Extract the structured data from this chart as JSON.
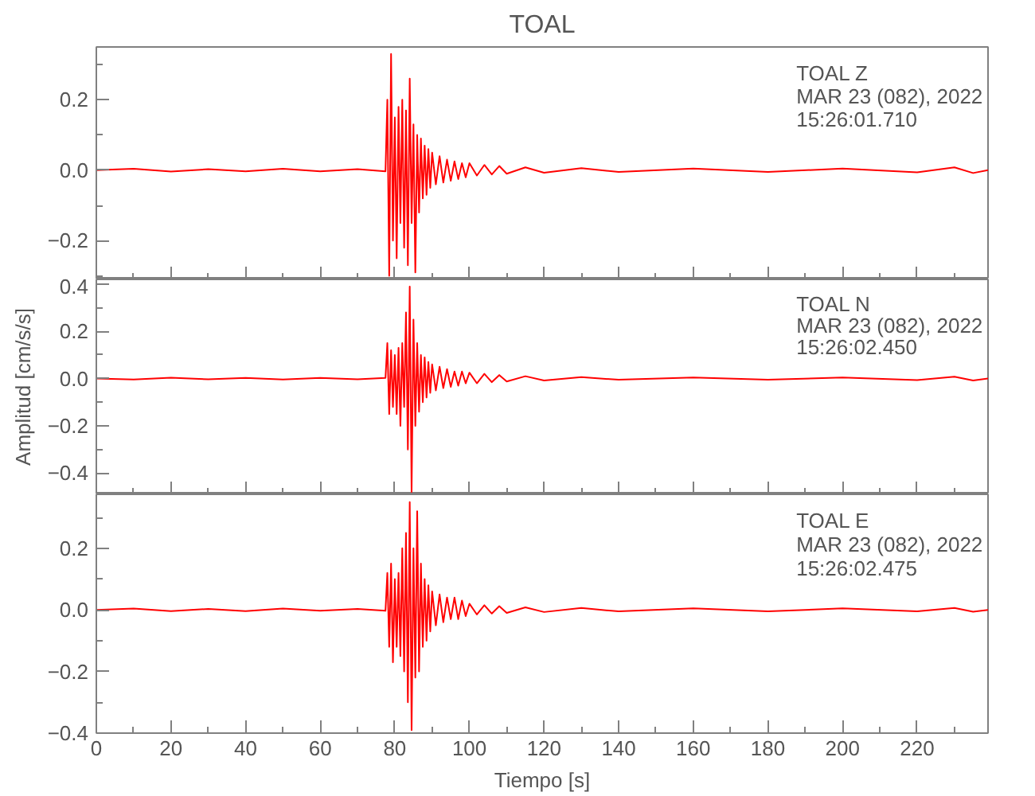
{
  "chart_data": [
    {
      "type": "line",
      "title": "TOAL",
      "x": [
        0,
        10,
        20,
        30,
        40,
        50,
        60,
        70,
        77.5,
        78.0,
        78.5,
        79.0,
        79.5,
        80.0,
        80.5,
        81.0,
        81.5,
        82.0,
        82.5,
        83.0,
        83.5,
        84.0,
        84.5,
        85.0,
        85.5,
        86.0,
        86.5,
        87.0,
        87.5,
        88.0,
        88.5,
        89.0,
        89.5,
        90,
        91,
        92,
        93,
        94,
        95,
        96,
        97,
        98,
        99,
        100,
        102,
        104,
        106,
        108,
        110,
        115,
        120,
        130,
        140,
        160,
        180,
        200,
        220,
        230,
        235,
        239
      ],
      "series": [
        {
          "color": "#ff0000",
          "values": [
            0,
            0.004,
            -0.004,
            0.003,
            -0.003,
            0.004,
            -0.003,
            0.003,
            -0.003,
            0.2,
            -0.3,
            0.33,
            -0.2,
            0.15,
            -0.25,
            0.18,
            -0.15,
            0.2,
            -0.22,
            0.17,
            -0.27,
            0.26,
            -0.15,
            0.13,
            -0.29,
            0.1,
            -0.12,
            0.09,
            -0.08,
            0.07,
            -0.07,
            0.06,
            -0.05,
            0.05,
            -0.04,
            0.04,
            -0.035,
            0.03,
            -0.03,
            0.025,
            -0.025,
            0.02,
            -0.02,
            0.02,
            -0.015,
            0.015,
            -0.012,
            0.012,
            -0.01,
            0.008,
            -0.007,
            0.006,
            -0.005,
            0.005,
            -0.005,
            0.005,
            -0.006,
            0.008,
            -0.008,
            0
          ]
        }
      ],
      "xlim": [
        0,
        239
      ],
      "ylim": [
        -0.31,
        0.35
      ],
      "xticks": [
        0,
        20,
        40,
        60,
        80,
        100,
        120,
        140,
        160,
        180,
        200,
        220
      ],
      "yticks": [
        {
          "value": -0.2,
          "label": "−0.2"
        },
        {
          "value": 0,
          "label": "0.0"
        },
        {
          "value": 0.2,
          "label": "0.2"
        }
      ],
      "tick_labels": "y",
      "annotations": [
        "TOAL   Z",
        "MAR 23 (082), 2022",
        "15:26:01.710"
      ]
    },
    {
      "type": "line",
      "ylabel": "Amplitud [cm/s/s]",
      "x": [
        0,
        10,
        20,
        30,
        40,
        50,
        60,
        70,
        77.5,
        78.0,
        78.5,
        79.0,
        79.5,
        80.0,
        80.5,
        81.0,
        81.5,
        82.0,
        82.5,
        83.0,
        83.5,
        84.0,
        84.5,
        85.0,
        85.5,
        86.0,
        86.5,
        87.0,
        87.5,
        88.0,
        88.5,
        89.0,
        89.5,
        90,
        91,
        92,
        93,
        94,
        95,
        96,
        97,
        98,
        99,
        100,
        102,
        104,
        106,
        108,
        110,
        115,
        120,
        130,
        140,
        160,
        180,
        200,
        220,
        230,
        235,
        239
      ],
      "series": [
        {
          "color": "#ff0000",
          "values": [
            0,
            -0.004,
            0.004,
            -0.003,
            0.003,
            -0.004,
            0.003,
            -0.003,
            0.003,
            0.15,
            -0.15,
            0.12,
            -0.12,
            0.1,
            -0.15,
            0.13,
            -0.2,
            0.15,
            -0.12,
            0.28,
            -0.3,
            0.39,
            -0.48,
            0.25,
            -0.2,
            0.15,
            -0.14,
            0.1,
            -0.1,
            0.09,
            -0.08,
            0.07,
            -0.06,
            0.06,
            -0.05,
            0.05,
            -0.04,
            0.04,
            -0.035,
            0.03,
            -0.03,
            0.03,
            -0.02,
            0.025,
            -0.02,
            0.02,
            -0.015,
            0.015,
            -0.012,
            0.01,
            -0.008,
            0.006,
            -0.005,
            0.005,
            -0.005,
            0.005,
            -0.006,
            0.008,
            -0.008,
            0
          ]
        }
      ],
      "xlim": [
        0,
        239
      ],
      "ylim": [
        -0.49,
        0.42
      ],
      "xticks": [
        0,
        20,
        40,
        60,
        80,
        100,
        120,
        140,
        160,
        180,
        200,
        220
      ],
      "yticks": [
        {
          "value": -0.4,
          "label": "−0.4"
        },
        {
          "value": -0.2,
          "label": "−0.2"
        },
        {
          "value": 0,
          "label": "0.0"
        },
        {
          "value": 0.2,
          "label": "0.2"
        },
        {
          "value": 0.4,
          "label": "0.4"
        }
      ],
      "tick_labels": "y",
      "annotations": [
        "TOAL   N",
        "MAR 23 (082), 2022",
        "15:26:02.450"
      ]
    },
    {
      "type": "line",
      "xlabel": "Tiempo [s]",
      "x": [
        0,
        10,
        20,
        30,
        40,
        50,
        60,
        70,
        77.5,
        78.0,
        78.5,
        79.0,
        79.5,
        80.0,
        80.5,
        81.0,
        81.5,
        82.0,
        82.5,
        83.0,
        83.5,
        84.0,
        84.5,
        85.0,
        85.5,
        86.0,
        86.5,
        87.0,
        87.5,
        88.0,
        88.5,
        89.0,
        89.5,
        90,
        91,
        92,
        93,
        94,
        95,
        96,
        97,
        98,
        99,
        100,
        102,
        104,
        106,
        108,
        110,
        115,
        120,
        130,
        140,
        160,
        180,
        200,
        220,
        230,
        235,
        239
      ],
      "series": [
        {
          "color": "#ff0000",
          "values": [
            0,
            0.004,
            -0.004,
            0.003,
            -0.004,
            0.004,
            -0.003,
            0.003,
            -0.003,
            0.12,
            -0.12,
            0.15,
            -0.17,
            0.1,
            -0.12,
            0.12,
            -0.15,
            0.2,
            -0.2,
            0.25,
            -0.3,
            0.35,
            -0.39,
            0.2,
            -0.22,
            0.32,
            -0.2,
            0.15,
            -0.12,
            0.1,
            -0.1,
            0.08,
            -0.07,
            0.06,
            -0.05,
            0.05,
            -0.04,
            0.04,
            -0.03,
            0.04,
            -0.03,
            0.03,
            -0.02,
            0.02,
            -0.015,
            0.015,
            -0.012,
            0.012,
            -0.01,
            0.008,
            -0.007,
            0.006,
            -0.005,
            0.005,
            -0.005,
            0.005,
            -0.005,
            0.006,
            -0.006,
            0
          ]
        }
      ],
      "xlim": [
        0,
        239
      ],
      "ylim": [
        -0.4,
        0.375
      ],
      "xticks": [
        0,
        20,
        40,
        60,
        80,
        100,
        120,
        140,
        160,
        180,
        200,
        220
      ],
      "yticks": [
        {
          "value": -0.4,
          "label": "−0.4"
        },
        {
          "value": -0.2,
          "label": "−0.2"
        },
        {
          "value": 0,
          "label": "0.0"
        },
        {
          "value": 0.2,
          "label": "0.2"
        }
      ],
      "annotations": [
        "TOAL   E",
        "MAR 23 (082), 2022",
        "15:26:02.475"
      ]
    }
  ]
}
